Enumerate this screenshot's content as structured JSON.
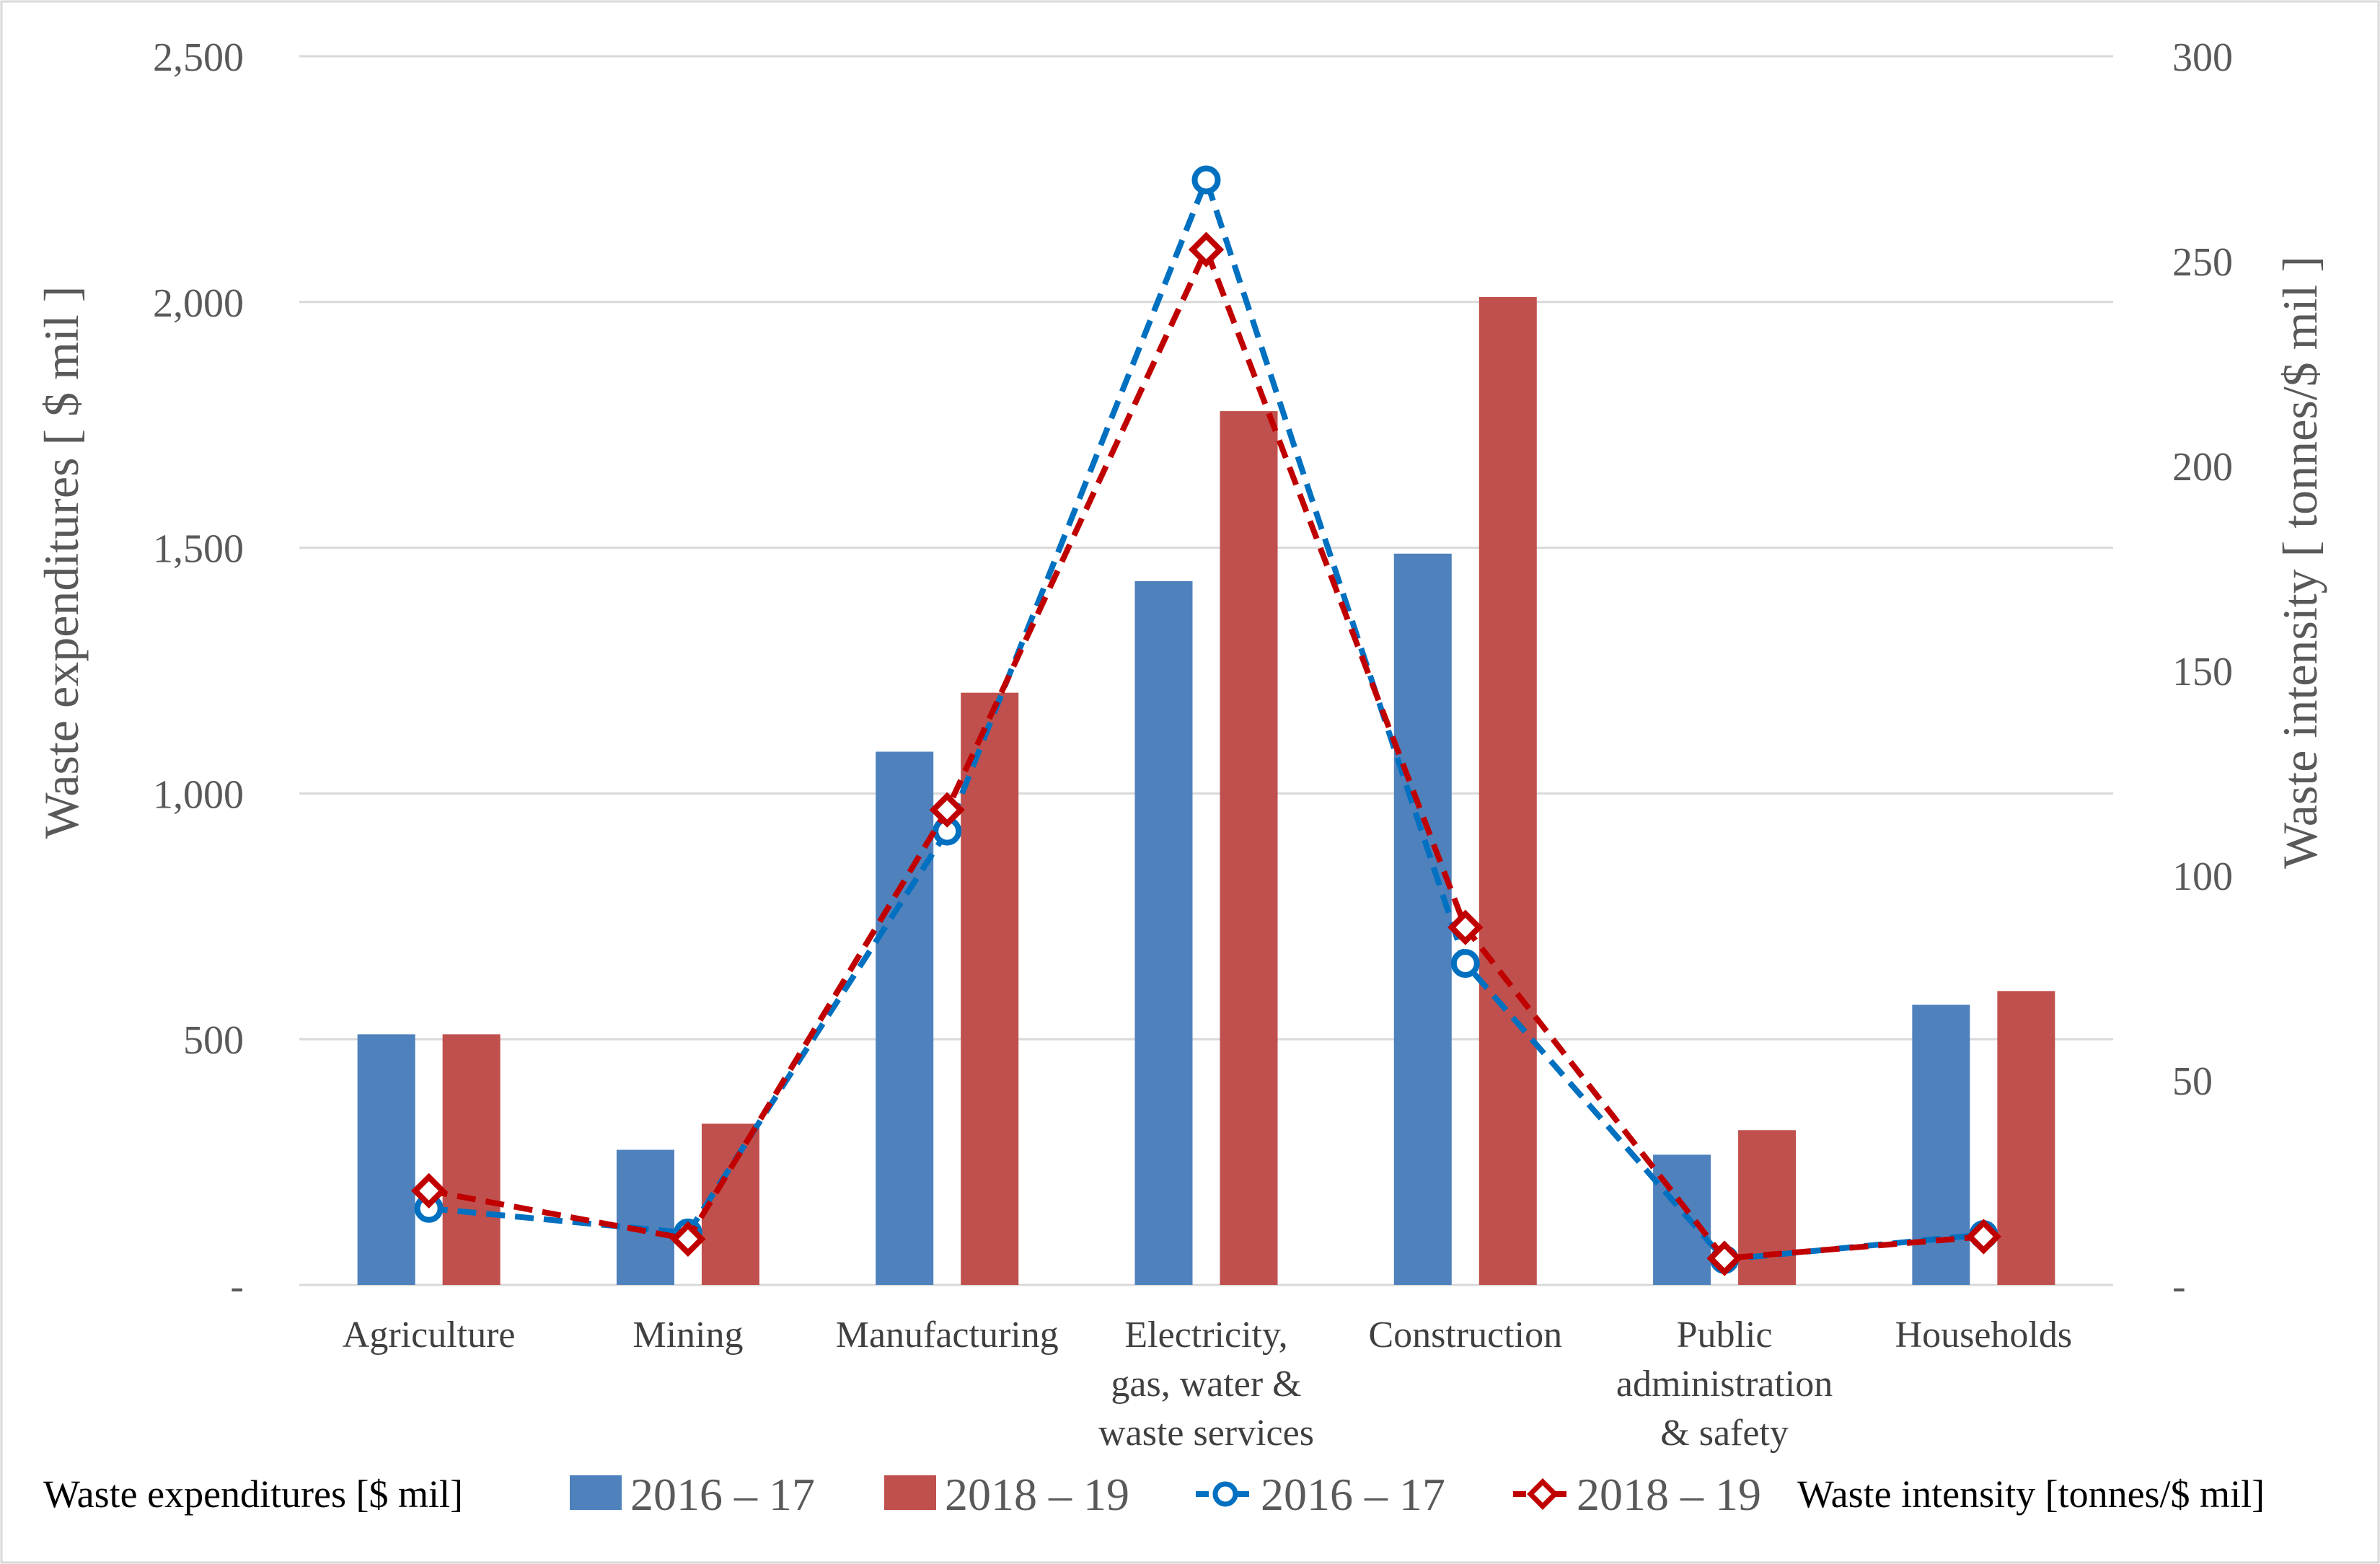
{
  "chart_data": {
    "type": "bar",
    "title": "",
    "categories": [
      [
        "Agriculture"
      ],
      [
        "Mining"
      ],
      [
        "Manufacturing"
      ],
      [
        "Electricity,",
        "gas, water &",
        "waste services"
      ],
      [
        "Construction"
      ],
      [
        "Public",
        "administration",
        "& safety"
      ],
      [
        "Households"
      ]
    ],
    "left_axis": {
      "label": "Waste expenditures  [ $ mil ]",
      "ylim": [
        0,
        2500
      ],
      "ticks": [
        0,
        500,
        1000,
        1500,
        2000,
        2500
      ],
      "tick_labels": [
        "-",
        "500",
        "1,000",
        "1,500",
        "2,000",
        "2,500"
      ]
    },
    "right_axis": {
      "label": "Waste intensity  [ tonnes/$ mil ]",
      "ylim": [
        0,
        300
      ],
      "ticks": [
        0,
        50,
        100,
        150,
        200,
        250,
        300
      ],
      "tick_labels": [
        "-",
        "50",
        "100",
        "150",
        "200",
        "250",
        "300"
      ]
    },
    "bar_series": [
      {
        "name": "2016 – 17",
        "axis": "left",
        "color": "#4F81BD",
        "values": [
          510,
          275,
          1085,
          1432,
          1488,
          265,
          570
        ]
      },
      {
        "name": "2018 – 19",
        "axis": "left",
        "color": "#C0504D",
        "values": [
          510,
          328,
          1205,
          1778,
          2010,
          315,
          598
        ]
      }
    ],
    "line_series": [
      {
        "name": "2016 – 17",
        "axis": "right",
        "color": "#0070C0",
        "marker": "circle",
        "values": [
          18.7,
          12.7,
          110.8,
          269.8,
          78.5,
          6.2,
          12.3
        ]
      },
      {
        "name": "2018 – 19",
        "axis": "right",
        "color": "#C00000",
        "marker": "diamond",
        "values": [
          23.0,
          11.2,
          116.0,
          252.8,
          87.3,
          6.5,
          11.8
        ]
      }
    ],
    "legend": {
      "bar_group_label": "Waste expenditures [$ mil]",
      "line_group_label": "Waste intensity [tonnes/$ mil]",
      "position": "bottom"
    },
    "grid": true
  }
}
